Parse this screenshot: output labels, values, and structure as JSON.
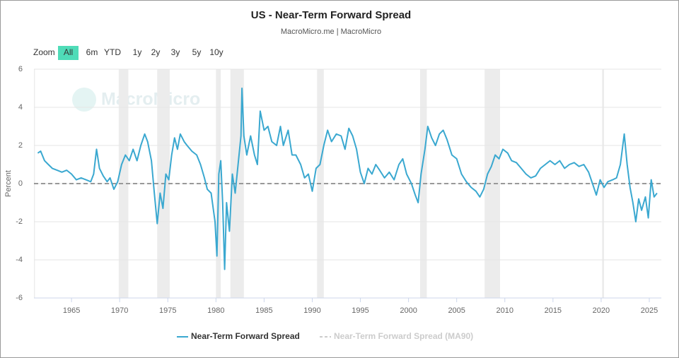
{
  "chart_data": {
    "type": "line",
    "title": "US - Near-Term Forward Spread",
    "subtitle": "MacroMicro.me | MacroMicro",
    "watermark": "MacroMicro",
    "y_label": "Percent",
    "range_selector": {
      "label": "Zoom",
      "buttons": [
        "All",
        "6m",
        "YTD",
        "1y",
        "2y",
        "3y",
        "5y",
        "10y"
      ],
      "selected": 0
    },
    "xlim": [
      1961.1,
      2026.25
    ],
    "xticks": [
      1965,
      1970,
      1975,
      1980,
      1985,
      1990,
      1995,
      2000,
      2005,
      2010,
      2015,
      2020,
      2025
    ],
    "ylim": [
      -6,
      6
    ],
    "yticks": [
      -6,
      -4,
      -2,
      0,
      2,
      4,
      6
    ],
    "grid": true,
    "hline": 0,
    "recessions": [
      [
        1960.9,
        1961.2
      ],
      [
        1969.9,
        1970.9
      ],
      [
        1973.9,
        1975.2
      ],
      [
        1980.0,
        1980.5
      ],
      [
        1981.5,
        1982.9
      ],
      [
        1990.5,
        1991.2
      ],
      [
        2001.2,
        2001.9
      ],
      [
        2007.9,
        2009.5
      ],
      [
        2020.1,
        2020.3
      ]
    ],
    "series": [
      {
        "name": "Near-Term Forward Spread",
        "color": "#3aa8d0",
        "visible": true,
        "x": [
          1961.5,
          1961.8,
          1962.2,
          1962.6,
          1963,
          1963.5,
          1964,
          1964.5,
          1965,
          1965.5,
          1966,
          1966.5,
          1967,
          1967.3,
          1967.6,
          1967.9,
          1968.3,
          1968.7,
          1969,
          1969.4,
          1969.8,
          1970.2,
          1970.6,
          1971,
          1971.4,
          1971.8,
          1972.2,
          1972.6,
          1972.9,
          1973.3,
          1973.6,
          1973.9,
          1974.2,
          1974.5,
          1974.8,
          1975.1,
          1975.4,
          1975.7,
          1976,
          1976.3,
          1976.7,
          1977,
          1977.5,
          1978,
          1978.4,
          1978.8,
          1979.1,
          1979.5,
          1979.9,
          1980.1,
          1980.3,
          1980.5,
          1980.7,
          1980.9,
          1981.1,
          1981.4,
          1981.7,
          1982,
          1982.3,
          1982.6,
          1982.7,
          1982.9,
          1983.2,
          1983.6,
          1984,
          1984.3,
          1984.6,
          1985,
          1985.4,
          1985.8,
          1986.3,
          1986.7,
          1987,
          1987.5,
          1987.9,
          1988.3,
          1988.8,
          1989.2,
          1989.6,
          1990,
          1990.4,
          1990.8,
          1991.2,
          1991.6,
          1992,
          1992.5,
          1993,
          1993.4,
          1993.8,
          1994.2,
          1994.6,
          1995,
          1995.4,
          1995.8,
          1996.2,
          1996.6,
          1997,
          1997.5,
          1998,
          1998.5,
          1999,
          1999.4,
          1999.8,
          2000.3,
          2000.7,
          2001,
          2001.3,
          2001.7,
          2002,
          2002.4,
          2002.8,
          2003.2,
          2003.6,
          2004,
          2004.5,
          2005,
          2005.5,
          2006,
          2006.5,
          2007,
          2007.4,
          2007.8,
          2008.2,
          2008.6,
          2009,
          2009.4,
          2009.8,
          2010.3,
          2010.7,
          2011.2,
          2011.7,
          2012.2,
          2012.7,
          2013.2,
          2013.7,
          2014.2,
          2014.7,
          2015.2,
          2015.7,
          2016.2,
          2016.7,
          2017.2,
          2017.7,
          2018.2,
          2018.7,
          2019.1,
          2019.5,
          2019.9,
          2020.3,
          2020.7,
          2021.2,
          2021.6,
          2022,
          2022.4,
          2022.7,
          2023,
          2023.3,
          2023.6,
          2023.9,
          2024.2,
          2024.6,
          2024.9,
          2025.2,
          2025.5,
          2025.8
        ],
        "values": [
          1.6,
          1.7,
          1.2,
          1.0,
          0.8,
          0.7,
          0.6,
          0.7,
          0.5,
          0.2,
          0.3,
          0.2,
          0.1,
          0.5,
          1.8,
          0.8,
          0.4,
          0.1,
          0.3,
          -0.3,
          0.1,
          1.0,
          1.5,
          1.2,
          1.8,
          1.2,
          2.0,
          2.6,
          2.2,
          1.2,
          -0.5,
          -2.1,
          -0.5,
          -1.3,
          0.5,
          0.2,
          1.5,
          2.4,
          1.8,
          2.6,
          2.2,
          2.0,
          1.7,
          1.5,
          1.0,
          0.3,
          -0.3,
          -0.5,
          -2.0,
          -3.8,
          0.5,
          1.2,
          -1.0,
          -4.5,
          -1.0,
          -2.5,
          0.5,
          -0.5,
          1.0,
          2.5,
          5.0,
          2.5,
          1.5,
          2.5,
          1.5,
          1.0,
          3.8,
          2.8,
          3.0,
          2.2,
          2.0,
          3.0,
          2.0,
          2.8,
          1.5,
          1.5,
          1.0,
          0.3,
          0.5,
          -0.4,
          0.8,
          1.0,
          2.0,
          2.8,
          2.2,
          2.6,
          2.5,
          1.8,
          2.9,
          2.5,
          1.8,
          0.6,
          0.0,
          0.8,
          0.5,
          1.0,
          0.7,
          0.3,
          0.6,
          0.2,
          1.0,
          1.3,
          0.5,
          0.0,
          -0.6,
          -1.0,
          0.5,
          1.8,
          3.0,
          2.4,
          2.0,
          2.6,
          2.8,
          2.3,
          1.5,
          1.3,
          0.5,
          0.1,
          -0.2,
          -0.4,
          -0.7,
          -0.3,
          0.5,
          0.9,
          1.5,
          1.3,
          1.8,
          1.6,
          1.2,
          1.1,
          0.8,
          0.5,
          0.3,
          0.4,
          0.8,
          1.0,
          1.2,
          1.0,
          1.2,
          0.8,
          1.0,
          1.1,
          0.9,
          1.0,
          0.6,
          0.0,
          -0.6,
          0.2,
          -0.2,
          0.1,
          0.2,
          0.3,
          1.0,
          2.6,
          1.0,
          -0.2,
          -1.0,
          -2.0,
          -0.8,
          -1.4,
          -0.7,
          -1.8,
          0.2,
          -0.7,
          -0.5
        ]
      },
      {
        "name": "Near-Term Forward Spread (MA90)",
        "color": "#aaaaaa",
        "visible": false,
        "x": [],
        "values": []
      }
    ]
  }
}
